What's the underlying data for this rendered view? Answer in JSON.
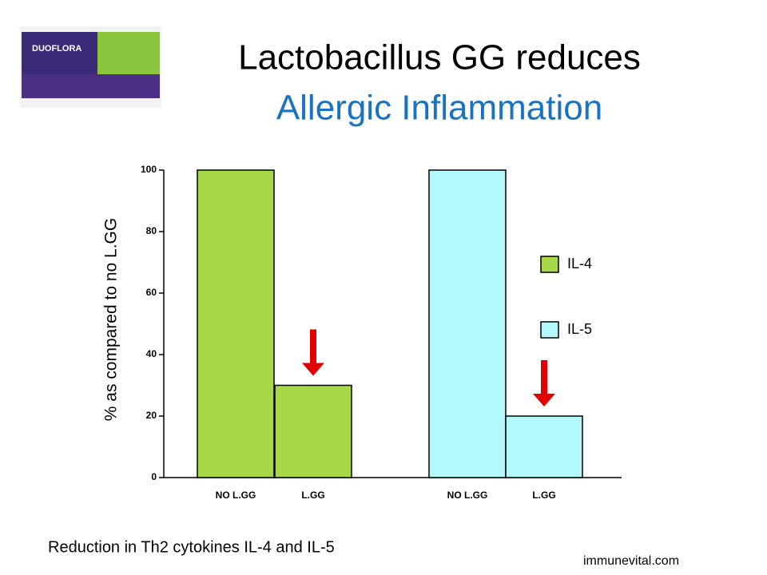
{
  "product": {
    "name": "DUOFLORA"
  },
  "chart_data": {
    "type": "bar",
    "title": "Lactobacillus GG reduces",
    "subtitle": "Allergic Inflammation",
    "ylabel": "% as compared to no L.GG",
    "categories": [
      "NO L.GG",
      "L.GG",
      "NO L.GG",
      "L.GG"
    ],
    "series": [
      {
        "name": "IL-4",
        "color": "#a6d84a",
        "values": [
          100,
          30,
          null,
          null
        ]
      },
      {
        "name": "IL-5",
        "color": "#b3f8fc",
        "values": [
          null,
          null,
          100,
          20
        ]
      }
    ],
    "ylim": [
      0,
      100
    ],
    "yticks": [
      0,
      20,
      40,
      60,
      80,
      100
    ],
    "caption": "Reduction in Th2 cytokines IL-4 and IL-5",
    "source": "immunevital.com"
  }
}
